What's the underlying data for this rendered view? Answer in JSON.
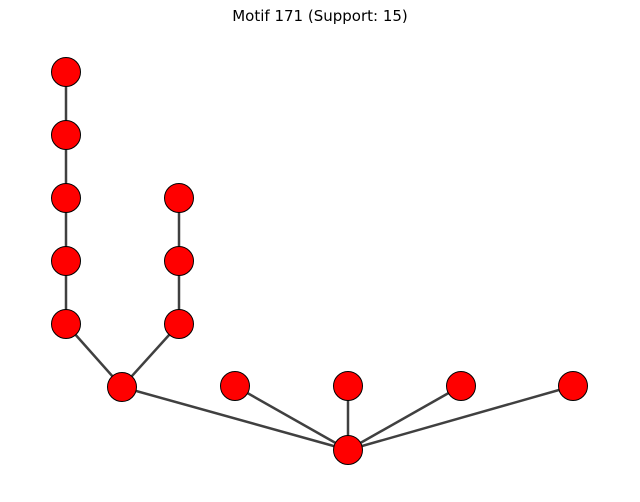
{
  "figure": {
    "title": "Motif 171 (Support: 15)"
  },
  "colors": {
    "node_fill": "#ff0000",
    "node_stroke": "#000000",
    "edge": "#404040",
    "background": "#ffffff"
  },
  "graph": {
    "nodes": [
      "n1",
      "n2",
      "n3",
      "n4",
      "n5",
      "n6",
      "n7",
      "n8",
      "n9",
      "n10",
      "n11",
      "n12",
      "n13",
      "n14"
    ],
    "edges": [
      [
        "n1",
        "n2"
      ],
      [
        "n2",
        "n3"
      ],
      [
        "n3",
        "n4"
      ],
      [
        "n4",
        "n5"
      ],
      [
        "n5",
        "n9"
      ],
      [
        "n6",
        "n7"
      ],
      [
        "n7",
        "n8"
      ],
      [
        "n8",
        "n9"
      ],
      [
        "n9",
        "n14"
      ],
      [
        "n10",
        "n14"
      ],
      [
        "n11",
        "n14"
      ],
      [
        "n12",
        "n14"
      ],
      [
        "n13",
        "n14"
      ]
    ]
  }
}
